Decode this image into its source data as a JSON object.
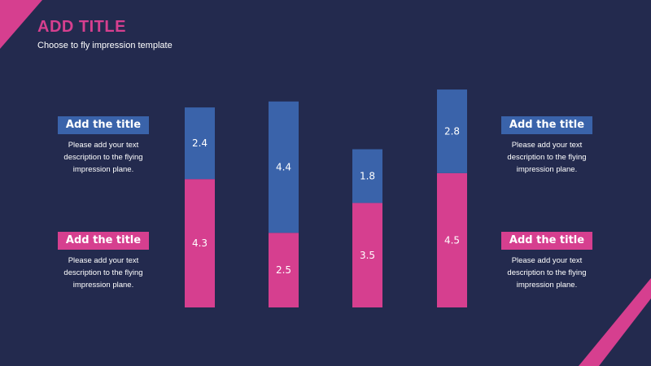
{
  "header": {
    "title": "ADD TITLE",
    "subtitle": "Choose to fly impression template"
  },
  "colors": {
    "background": "#232a4e",
    "accent_pink": "#d63f8f",
    "accent_blue": "#3a63aa",
    "text": "#ffffff"
  },
  "cards": {
    "top_left": {
      "label": "Add the title",
      "desc": "Please add your text description to the flying impression plane.",
      "color": "#3a63aa"
    },
    "bottom_left": {
      "label": "Add the title",
      "desc": "Please add your text description to the flying impression plane.",
      "color": "#d63f8f"
    },
    "top_right": {
      "label": "Add the title",
      "desc": "Please add your text description to the flying impression plane.",
      "color": "#3a63aa"
    },
    "bottom_right": {
      "label": "Add the title",
      "desc": "Please add your text description to the flying impression plane.",
      "color": "#d63f8f"
    }
  },
  "chart_data": {
    "type": "bar",
    "stacked": true,
    "categories": [
      "",
      "",
      "",
      ""
    ],
    "series": [
      {
        "values": [
          4.3,
          2.5,
          3.5,
          4.5
        ],
        "color": "#d63f8f"
      },
      {
        "values": [
          2.4,
          4.4,
          1.8,
          2.8
        ],
        "color": "#3a63aa"
      }
    ],
    "axes_visible": false,
    "grid": false,
    "legend": "none"
  }
}
